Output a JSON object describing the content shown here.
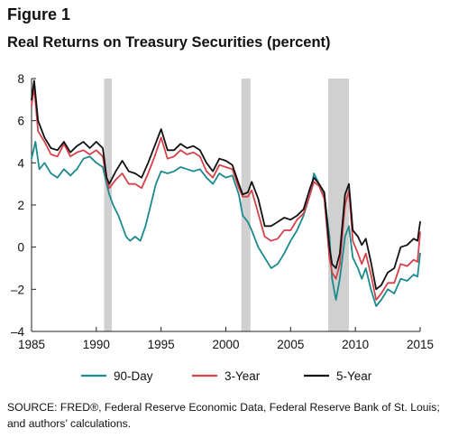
{
  "figure_label": "Figure 1",
  "source_text": "SOURCE: FRED®, Federal Reserve Economic Data, Federal Reserve Bank of St. Louis; and authors’ calculations.",
  "chart_data": {
    "type": "line",
    "title": "Real Returns on Treasury Securities (percent)",
    "xlabel": "",
    "ylabel": "",
    "xlim": [
      1985,
      2015
    ],
    "ylim": [
      -4,
      8
    ],
    "x_ticks": [
      1985,
      1990,
      1995,
      2000,
      2005,
      2010,
      2015
    ],
    "y_ticks": [
      -4,
      -2,
      0,
      2,
      4,
      6,
      8
    ],
    "y_tick_labels": [
      "–4",
      "–2",
      "0",
      "2",
      "4",
      "6",
      "8"
    ],
    "grid": false,
    "legend": "bottom",
    "recessions": [
      [
        1990.6,
        1991.2
      ],
      [
        2001.2,
        2001.9
      ],
      [
        2007.9,
        2009.5
      ]
    ],
    "recession_color": "#d0d0d0",
    "series": [
      {
        "name": "90-Day",
        "color": "#1a8a8e",
        "points": [
          [
            1985.0,
            4.2
          ],
          [
            1985.3,
            5.0
          ],
          [
            1985.6,
            3.7
          ],
          [
            1986.0,
            4.0
          ],
          [
            1986.5,
            3.5
          ],
          [
            1987.0,
            3.3
          ],
          [
            1987.5,
            3.7
          ],
          [
            1988.0,
            3.4
          ],
          [
            1988.5,
            3.7
          ],
          [
            1989.0,
            4.2
          ],
          [
            1989.5,
            4.3
          ],
          [
            1990.0,
            4.0
          ],
          [
            1990.5,
            3.8
          ],
          [
            1990.8,
            3.0
          ],
          [
            1991.0,
            2.5
          ],
          [
            1991.3,
            2.0
          ],
          [
            1991.7,
            1.5
          ],
          [
            1992.0,
            1.0
          ],
          [
            1992.3,
            0.5
          ],
          [
            1992.6,
            0.3
          ],
          [
            1993.0,
            0.5
          ],
          [
            1993.4,
            0.3
          ],
          [
            1993.8,
            1.0
          ],
          [
            1994.2,
            2.0
          ],
          [
            1994.6,
            3.0
          ],
          [
            1995.0,
            3.6
          ],
          [
            1995.5,
            3.5
          ],
          [
            1996.0,
            3.6
          ],
          [
            1996.5,
            3.8
          ],
          [
            1997.0,
            3.7
          ],
          [
            1997.5,
            3.6
          ],
          [
            1998.0,
            3.7
          ],
          [
            1998.5,
            3.3
          ],
          [
            1999.0,
            3.0
          ],
          [
            1999.5,
            3.5
          ],
          [
            2000.0,
            3.3
          ],
          [
            2000.5,
            3.4
          ],
          [
            2001.0,
            2.5
          ],
          [
            2001.3,
            1.5
          ],
          [
            2001.7,
            1.2
          ],
          [
            2002.0,
            0.8
          ],
          [
            2002.5,
            0.0
          ],
          [
            2003.0,
            -0.5
          ],
          [
            2003.5,
            -1.0
          ],
          [
            2004.0,
            -0.8
          ],
          [
            2004.5,
            -0.3
          ],
          [
            2005.0,
            0.3
          ],
          [
            2005.5,
            0.8
          ],
          [
            2006.0,
            1.5
          ],
          [
            2006.5,
            2.5
          ],
          [
            2006.8,
            3.5
          ],
          [
            2007.2,
            3.0
          ],
          [
            2007.6,
            2.5
          ],
          [
            2008.0,
            0.5
          ],
          [
            2008.2,
            -1.5
          ],
          [
            2008.5,
            -2.5
          ],
          [
            2008.8,
            -1.5
          ],
          [
            2009.2,
            0.5
          ],
          [
            2009.5,
            1.0
          ],
          [
            2009.8,
            -0.5
          ],
          [
            2010.2,
            -1.0
          ],
          [
            2010.5,
            -1.5
          ],
          [
            2010.8,
            -1.0
          ],
          [
            2011.2,
            -2.0
          ],
          [
            2011.6,
            -2.8
          ],
          [
            2012.0,
            -2.5
          ],
          [
            2012.5,
            -2.0
          ],
          [
            2013.0,
            -2.2
          ],
          [
            2013.5,
            -1.5
          ],
          [
            2014.0,
            -1.6
          ],
          [
            2014.5,
            -1.3
          ],
          [
            2014.8,
            -1.4
          ],
          [
            2015.0,
            -0.3
          ]
        ]
      },
      {
        "name": "3-Year",
        "color": "#d6414a",
        "points": [
          [
            1985.0,
            6.7
          ],
          [
            1985.2,
            7.6
          ],
          [
            1985.5,
            5.5
          ],
          [
            1986.0,
            5.0
          ],
          [
            1986.5,
            4.4
          ],
          [
            1987.0,
            4.3
          ],
          [
            1987.5,
            4.9
          ],
          [
            1988.0,
            4.3
          ],
          [
            1988.5,
            4.5
          ],
          [
            1989.0,
            4.6
          ],
          [
            1989.5,
            4.4
          ],
          [
            1990.0,
            4.6
          ],
          [
            1990.5,
            4.3
          ],
          [
            1990.8,
            3.2
          ],
          [
            1991.0,
            2.8
          ],
          [
            1991.5,
            3.2
          ],
          [
            1992.0,
            3.5
          ],
          [
            1992.5,
            3.0
          ],
          [
            1993.0,
            3.0
          ],
          [
            1993.5,
            2.8
          ],
          [
            1994.0,
            3.5
          ],
          [
            1994.5,
            4.3
          ],
          [
            1995.0,
            5.2
          ],
          [
            1995.5,
            4.2
          ],
          [
            1996.0,
            4.3
          ],
          [
            1996.5,
            4.6
          ],
          [
            1997.0,
            4.4
          ],
          [
            1997.5,
            4.5
          ],
          [
            1998.0,
            4.3
          ],
          [
            1998.5,
            3.6
          ],
          [
            1999.0,
            3.3
          ],
          [
            1999.5,
            3.9
          ],
          [
            2000.0,
            3.8
          ],
          [
            2000.5,
            3.7
          ],
          [
            2001.0,
            2.8
          ],
          [
            2001.3,
            2.4
          ],
          [
            2001.7,
            2.4
          ],
          [
            2002.0,
            2.7
          ],
          [
            2002.5,
            1.6
          ],
          [
            2003.0,
            0.5
          ],
          [
            2003.5,
            0.3
          ],
          [
            2004.0,
            0.4
          ],
          [
            2004.5,
            0.8
          ],
          [
            2005.0,
            0.8
          ],
          [
            2005.5,
            1.3
          ],
          [
            2006.0,
            1.6
          ],
          [
            2006.5,
            2.5
          ],
          [
            2006.8,
            3.1
          ],
          [
            2007.2,
            2.9
          ],
          [
            2007.6,
            2.3
          ],
          [
            2008.0,
            -0.5
          ],
          [
            2008.2,
            -1.2
          ],
          [
            2008.5,
            -1.5
          ],
          [
            2008.8,
            -0.8
          ],
          [
            2009.2,
            2.0
          ],
          [
            2009.5,
            2.7
          ],
          [
            2009.8,
            0.3
          ],
          [
            2010.2,
            -0.3
          ],
          [
            2010.5,
            -0.8
          ],
          [
            2010.8,
            -0.3
          ],
          [
            2011.2,
            -1.3
          ],
          [
            2011.6,
            -2.5
          ],
          [
            2012.0,
            -2.2
          ],
          [
            2012.5,
            -1.7
          ],
          [
            2013.0,
            -1.7
          ],
          [
            2013.5,
            -0.8
          ],
          [
            2014.0,
            -0.9
          ],
          [
            2014.5,
            -0.6
          ],
          [
            2014.8,
            -0.7
          ],
          [
            2015.0,
            0.7
          ]
        ]
      },
      {
        "name": "5-Year",
        "color": "#111111",
        "points": [
          [
            1985.0,
            7.0
          ],
          [
            1985.2,
            7.9
          ],
          [
            1985.5,
            6.0
          ],
          [
            1986.0,
            5.2
          ],
          [
            1986.5,
            4.7
          ],
          [
            1987.0,
            4.6
          ],
          [
            1987.5,
            5.0
          ],
          [
            1988.0,
            4.5
          ],
          [
            1988.5,
            4.8
          ],
          [
            1989.0,
            5.0
          ],
          [
            1989.5,
            4.7
          ],
          [
            1990.0,
            5.0
          ],
          [
            1990.5,
            4.7
          ],
          [
            1990.8,
            3.3
          ],
          [
            1991.0,
            3.0
          ],
          [
            1991.5,
            3.6
          ],
          [
            1992.0,
            4.1
          ],
          [
            1992.5,
            3.6
          ],
          [
            1993.0,
            3.5
          ],
          [
            1993.5,
            3.3
          ],
          [
            1994.0,
            4.0
          ],
          [
            1994.5,
            4.8
          ],
          [
            1995.0,
            5.6
          ],
          [
            1995.5,
            4.6
          ],
          [
            1996.0,
            4.6
          ],
          [
            1996.5,
            4.9
          ],
          [
            1997.0,
            4.7
          ],
          [
            1997.5,
            4.8
          ],
          [
            1998.0,
            4.6
          ],
          [
            1998.5,
            4.0
          ],
          [
            1999.0,
            3.6
          ],
          [
            1999.5,
            4.2
          ],
          [
            2000.0,
            4.1
          ],
          [
            2000.5,
            3.9
          ],
          [
            2001.0,
            3.0
          ],
          [
            2001.3,
            2.5
          ],
          [
            2001.7,
            2.6
          ],
          [
            2002.0,
            3.1
          ],
          [
            2002.5,
            2.3
          ],
          [
            2003.0,
            1.0
          ],
          [
            2003.5,
            1.0
          ],
          [
            2004.0,
            1.2
          ],
          [
            2004.5,
            1.4
          ],
          [
            2005.0,
            1.3
          ],
          [
            2005.5,
            1.5
          ],
          [
            2006.0,
            1.8
          ],
          [
            2006.5,
            2.8
          ],
          [
            2006.8,
            3.3
          ],
          [
            2007.2,
            3.0
          ],
          [
            2007.6,
            2.6
          ],
          [
            2008.0,
            0.0
          ],
          [
            2008.2,
            -0.8
          ],
          [
            2008.5,
            -1.0
          ],
          [
            2008.8,
            -0.3
          ],
          [
            2009.2,
            2.5
          ],
          [
            2009.5,
            3.0
          ],
          [
            2009.8,
            0.8
          ],
          [
            2010.2,
            0.5
          ],
          [
            2010.5,
            0.1
          ],
          [
            2010.8,
            0.4
          ],
          [
            2011.2,
            -0.7
          ],
          [
            2011.6,
            -2.0
          ],
          [
            2012.0,
            -1.8
          ],
          [
            2012.5,
            -1.2
          ],
          [
            2013.0,
            -1.0
          ],
          [
            2013.5,
            0.0
          ],
          [
            2014.0,
            0.1
          ],
          [
            2014.5,
            0.4
          ],
          [
            2014.8,
            0.3
          ],
          [
            2015.0,
            1.2
          ]
        ]
      }
    ]
  }
}
